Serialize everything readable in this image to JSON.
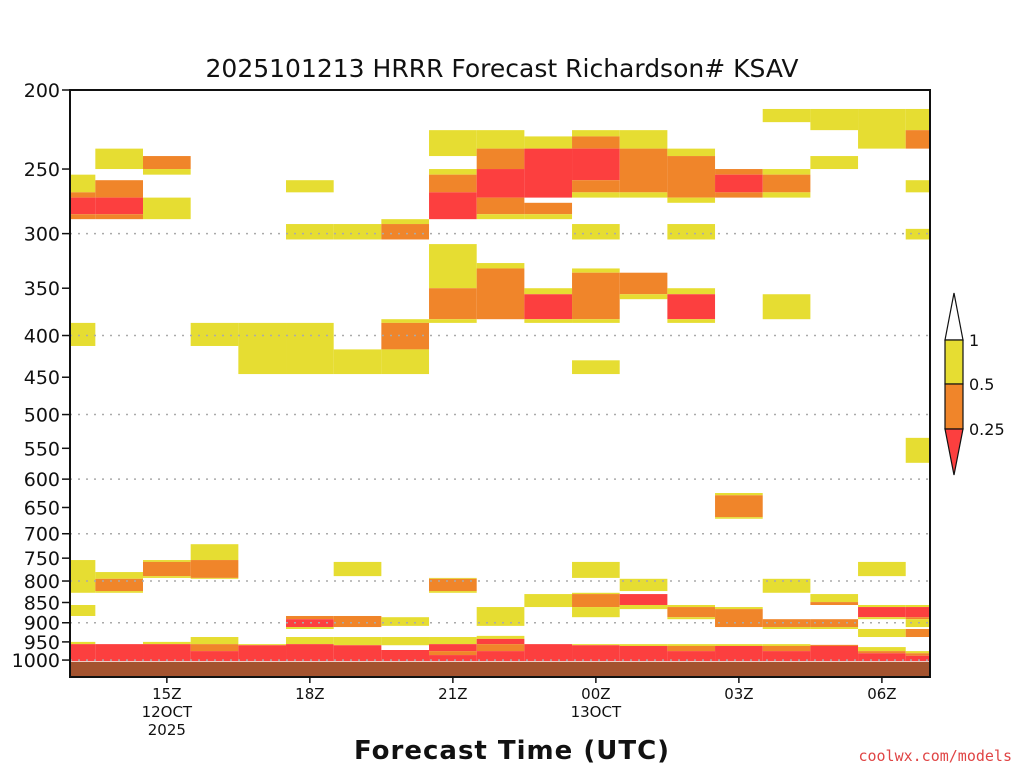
{
  "chart_data": {
    "type": "heatmap",
    "title": "2025101213 HRRR Forecast Richardson# KSAV",
    "xlabel": "Forecast Time (UTC)",
    "ylabel": "",
    "y_scale": "log",
    "ylim": [
      1050,
      200
    ],
    "y_ticks": [
      "200",
      "250",
      "300",
      "350",
      "400",
      "450",
      "500",
      "550",
      "600",
      "650",
      "700",
      "750",
      "800",
      "850",
      "900",
      "950",
      "1000"
    ],
    "y_tick_values": [
      200,
      250,
      300,
      350,
      400,
      450,
      500,
      550,
      600,
      650,
      700,
      750,
      800,
      850,
      900,
      950,
      1000
    ],
    "grid_levels": [
      300,
      400,
      500,
      600,
      700,
      800,
      900,
      1000
    ],
    "hours": [
      "13Z",
      "14Z",
      "15Z",
      "16Z",
      "17Z",
      "18Z",
      "19Z",
      "20Z",
      "21Z",
      "22Z",
      "23Z",
      "00Z",
      "01Z",
      "02Z",
      "03Z",
      "04Z",
      "05Z",
      "06Z",
      "07Z"
    ],
    "x_ticks": [
      {
        "hour_index": 2,
        "label": "15Z",
        "sub1": "12OCT",
        "sub2": "2025"
      },
      {
        "hour_index": 5,
        "label": "18Z",
        "sub1": "",
        "sub2": ""
      },
      {
        "hour_index": 8,
        "label": "21Z",
        "sub1": "",
        "sub2": ""
      },
      {
        "hour_index": 11,
        "label": "00Z",
        "sub1": "13OCT",
        "sub2": ""
      },
      {
        "hour_index": 14,
        "label": "03Z",
        "sub1": "",
        "sub2": ""
      },
      {
        "hour_index": 17,
        "label": "06Z",
        "sub1": "",
        "sub2": ""
      }
    ],
    "surface_pressure": 1005,
    "categories": {
      "y": {
        "range": "0.5-1",
        "color": "#e6dd32"
      },
      "o": {
        "range": "0.25-0.5",
        "color": "#f0852a"
      },
      "r": {
        "range": "<0.25",
        "color": "#fc3f3f"
      }
    },
    "ground_color": "#a4532f",
    "colorbar": {
      "labels": [
        "1",
        "0.5",
        "0.25"
      ],
      "values": [
        1,
        0.5,
        0.25
      ]
    },
    "cells_format": [
      "hour_index",
      "p_top_hPa",
      "p_bottom_hPa",
      "category"
    ],
    "cells": [
      [
        0,
        254,
        267,
        "y"
      ],
      [
        0,
        267,
        271,
        "o"
      ],
      [
        0,
        271,
        284,
        "r"
      ],
      [
        0,
        284,
        288,
        "o"
      ],
      [
        0,
        386,
        412,
        "y"
      ],
      [
        0,
        754,
        827,
        "y"
      ],
      [
        0,
        856,
        883,
        "y"
      ],
      [
        0,
        950,
        956,
        "y"
      ],
      [
        0,
        956,
        1003,
        "r"
      ],
      [
        1,
        236,
        250,
        "y"
      ],
      [
        1,
        258,
        271,
        "o"
      ],
      [
        1,
        271,
        284,
        "r"
      ],
      [
        1,
        284,
        288,
        "o"
      ],
      [
        1,
        780,
        795,
        "y"
      ],
      [
        1,
        795,
        823,
        "o"
      ],
      [
        1,
        823,
        827,
        "y"
      ],
      [
        1,
        956,
        1003,
        "r"
      ],
      [
        2,
        241,
        250,
        "o"
      ],
      [
        2,
        250,
        254,
        "y"
      ],
      [
        2,
        271,
        288,
        "y"
      ],
      [
        2,
        754,
        758,
        "y"
      ],
      [
        2,
        758,
        789,
        "o"
      ],
      [
        2,
        789,
        793,
        "y"
      ],
      [
        2,
        950,
        956,
        "y"
      ],
      [
        2,
        956,
        1003,
        "r"
      ],
      [
        3,
        386,
        412,
        "y"
      ],
      [
        3,
        721,
        754,
        "y"
      ],
      [
        3,
        754,
        793,
        "o"
      ],
      [
        3,
        793,
        795,
        "y"
      ],
      [
        3,
        937,
        956,
        "y"
      ],
      [
        3,
        956,
        975,
        "o"
      ],
      [
        3,
        975,
        1003,
        "r"
      ],
      [
        4,
        386,
        446,
        "y"
      ],
      [
        4,
        956,
        959,
        "y"
      ],
      [
        4,
        959,
        1003,
        "r"
      ],
      [
        5,
        258,
        267,
        "y"
      ],
      [
        5,
        292,
        305,
        "y"
      ],
      [
        5,
        386,
        446,
        "y"
      ],
      [
        5,
        883,
        891,
        "o"
      ],
      [
        5,
        891,
        911,
        "r"
      ],
      [
        5,
        911,
        916,
        "y"
      ],
      [
        5,
        937,
        956,
        "y"
      ],
      [
        5,
        956,
        1003,
        "r"
      ],
      [
        6,
        292,
        305,
        "y"
      ],
      [
        6,
        416,
        446,
        "y"
      ],
      [
        6,
        758,
        789,
        "y"
      ],
      [
        6,
        883,
        911,
        "o"
      ],
      [
        6,
        937,
        959,
        "y"
      ],
      [
        6,
        959,
        1003,
        "r"
      ],
      [
        7,
        288,
        292,
        "y"
      ],
      [
        7,
        292,
        305,
        "o"
      ],
      [
        7,
        382,
        386,
        "y"
      ],
      [
        7,
        386,
        416,
        "o"
      ],
      [
        7,
        416,
        446,
        "y"
      ],
      [
        7,
        886,
        908,
        "y"
      ],
      [
        7,
        937,
        959,
        "y"
      ],
      [
        7,
        972,
        1003,
        "r"
      ],
      [
        8,
        224,
        241,
        "y"
      ],
      [
        8,
        250,
        254,
        "y"
      ],
      [
        8,
        254,
        267,
        "o"
      ],
      [
        8,
        267,
        288,
        "r"
      ],
      [
        8,
        309,
        350,
        "y"
      ],
      [
        8,
        350,
        382,
        "o"
      ],
      [
        8,
        382,
        386,
        "y"
      ],
      [
        8,
        793,
        795,
        "y"
      ],
      [
        8,
        795,
        823,
        "o"
      ],
      [
        8,
        823,
        827,
        "y"
      ],
      [
        8,
        937,
        956,
        "y"
      ],
      [
        8,
        956,
        975,
        "r"
      ],
      [
        8,
        975,
        986,
        "o"
      ],
      [
        8,
        986,
        1003,
        "r"
      ],
      [
        9,
        224,
        236,
        "y"
      ],
      [
        9,
        236,
        250,
        "o"
      ],
      [
        9,
        250,
        271,
        "r"
      ],
      [
        9,
        271,
        284,
        "o"
      ],
      [
        9,
        284,
        288,
        "y"
      ],
      [
        9,
        326,
        331,
        "y"
      ],
      [
        9,
        331,
        382,
        "o"
      ],
      [
        9,
        861,
        908,
        "y"
      ],
      [
        9,
        934,
        942,
        "y"
      ],
      [
        9,
        942,
        956,
        "r"
      ],
      [
        9,
        956,
        975,
        "o"
      ],
      [
        9,
        975,
        1003,
        "r"
      ],
      [
        10,
        228,
        236,
        "y"
      ],
      [
        10,
        236,
        271,
        "r"
      ],
      [
        10,
        275,
        284,
        "o"
      ],
      [
        10,
        284,
        288,
        "y"
      ],
      [
        10,
        350,
        356,
        "y"
      ],
      [
        10,
        356,
        382,
        "r"
      ],
      [
        10,
        382,
        386,
        "y"
      ],
      [
        10,
        830,
        861,
        "y"
      ],
      [
        10,
        956,
        1003,
        "r"
      ],
      [
        11,
        224,
        228,
        "y"
      ],
      [
        11,
        228,
        236,
        "o"
      ],
      [
        11,
        236,
        258,
        "r"
      ],
      [
        11,
        258,
        267,
        "o"
      ],
      [
        11,
        267,
        271,
        "y"
      ],
      [
        11,
        292,
        305,
        "y"
      ],
      [
        11,
        331,
        335,
        "y"
      ],
      [
        11,
        335,
        382,
        "o"
      ],
      [
        11,
        382,
        386,
        "y"
      ],
      [
        11,
        429,
        446,
        "y"
      ],
      [
        11,
        758,
        793,
        "y"
      ],
      [
        11,
        827,
        830,
        "y"
      ],
      [
        11,
        830,
        861,
        "o"
      ],
      [
        11,
        861,
        886,
        "y"
      ],
      [
        11,
        956,
        959,
        "y"
      ],
      [
        11,
        959,
        1003,
        "r"
      ],
      [
        12,
        224,
        236,
        "y"
      ],
      [
        12,
        236,
        267,
        "o"
      ],
      [
        12,
        267,
        271,
        "y"
      ],
      [
        12,
        335,
        356,
        "o"
      ],
      [
        12,
        356,
        361,
        "y"
      ],
      [
        12,
        795,
        823,
        "y"
      ],
      [
        12,
        830,
        856,
        "r"
      ],
      [
        12,
        856,
        866,
        "y"
      ],
      [
        12,
        956,
        961,
        "y"
      ],
      [
        12,
        961,
        1003,
        "r"
      ],
      [
        13,
        236,
        241,
        "y"
      ],
      [
        13,
        241,
        271,
        "o"
      ],
      [
        13,
        271,
        275,
        "y"
      ],
      [
        13,
        292,
        305,
        "y"
      ],
      [
        13,
        350,
        356,
        "y"
      ],
      [
        13,
        356,
        382,
        "r"
      ],
      [
        13,
        382,
        386,
        "y"
      ],
      [
        13,
        856,
        861,
        "y"
      ],
      [
        13,
        861,
        886,
        "o"
      ],
      [
        13,
        886,
        891,
        "y"
      ],
      [
        13,
        956,
        961,
        "y"
      ],
      [
        13,
        961,
        975,
        "o"
      ],
      [
        13,
        975,
        1003,
        "r"
      ],
      [
        14,
        250,
        254,
        "o"
      ],
      [
        14,
        254,
        267,
        "r"
      ],
      [
        14,
        267,
        271,
        "o"
      ],
      [
        14,
        624,
        628,
        "y"
      ],
      [
        14,
        628,
        668,
        "o"
      ],
      [
        14,
        668,
        671,
        "y"
      ],
      [
        14,
        861,
        866,
        "y"
      ],
      [
        14,
        866,
        911,
        "o"
      ],
      [
        14,
        956,
        961,
        "y"
      ],
      [
        14,
        961,
        1003,
        "r"
      ],
      [
        15,
        211,
        219,
        "y"
      ],
      [
        15,
        250,
        254,
        "y"
      ],
      [
        15,
        254,
        267,
        "o"
      ],
      [
        15,
        267,
        271,
        "y"
      ],
      [
        15,
        356,
        382,
        "y"
      ],
      [
        15,
        795,
        827,
        "y"
      ],
      [
        15,
        891,
        911,
        "o"
      ],
      [
        15,
        911,
        916,
        "y"
      ],
      [
        15,
        956,
        961,
        "y"
      ],
      [
        15,
        961,
        975,
        "o"
      ],
      [
        15,
        975,
        1003,
        "r"
      ],
      [
        16,
        211,
        224,
        "y"
      ],
      [
        16,
        241,
        250,
        "y"
      ],
      [
        16,
        830,
        849,
        "y"
      ],
      [
        16,
        849,
        856,
        "o"
      ],
      [
        16,
        891,
        911,
        "o"
      ],
      [
        16,
        911,
        916,
        "y"
      ],
      [
        16,
        958,
        961,
        "o"
      ],
      [
        16,
        961,
        1003,
        "r"
      ],
      [
        17,
        211,
        236,
        "y"
      ],
      [
        17,
        758,
        789,
        "y"
      ],
      [
        17,
        856,
        861,
        "y"
      ],
      [
        17,
        861,
        886,
        "r"
      ],
      [
        17,
        886,
        891,
        "y"
      ],
      [
        17,
        916,
        937,
        "y"
      ],
      [
        17,
        964,
        975,
        "y"
      ],
      [
        17,
        975,
        981,
        "o"
      ],
      [
        17,
        981,
        1003,
        "r"
      ],
      [
        18,
        211,
        224,
        "y"
      ],
      [
        18,
        224,
        236,
        "o"
      ],
      [
        18,
        258,
        267,
        "y"
      ],
      [
        18,
        296,
        305,
        "y"
      ],
      [
        18,
        534,
        573,
        "y"
      ],
      [
        18,
        856,
        861,
        "y"
      ],
      [
        18,
        861,
        886,
        "r"
      ],
      [
        18,
        886,
        891,
        "o"
      ],
      [
        18,
        891,
        911,
        "y"
      ],
      [
        18,
        916,
        937,
        "o"
      ],
      [
        18,
        975,
        981,
        "y"
      ],
      [
        18,
        981,
        988,
        "o"
      ],
      [
        18,
        988,
        1003,
        "r"
      ]
    ]
  },
  "credit": "coolwx.com/models"
}
